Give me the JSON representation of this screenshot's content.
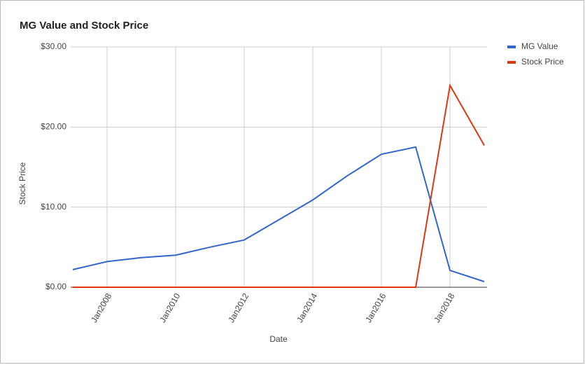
{
  "chart_data": {
    "type": "line",
    "title": "MG Value and Stock Price",
    "x_label": "Date",
    "y_label": "Stock Price",
    "x": [
      2007,
      2008,
      2009,
      2010,
      2011,
      2012,
      2013,
      2014,
      2015,
      2016,
      2017,
      2018,
      2019
    ],
    "series": [
      {
        "name": "MG Value",
        "color": "#3366cc",
        "values": [
          2.2,
          3.2,
          3.7,
          4.0,
          5.0,
          5.9,
          8.4,
          10.9,
          13.9,
          16.6,
          17.5,
          2.1,
          0.7
        ]
      },
      {
        "name": "Stock Price",
        "color": "#dc3912",
        "values": [
          0,
          0,
          0,
          0,
          0,
          0,
          0,
          0,
          0,
          0,
          0,
          25.2,
          17.7
        ]
      }
    ],
    "xlim": [
      2006.94,
      2019.08
    ],
    "xticks": [
      {
        "value": 2008,
        "label": "Jan2008"
      },
      {
        "value": 2010,
        "label": "Jan2010"
      },
      {
        "value": 2012,
        "label": "Jan2012"
      },
      {
        "value": 2014,
        "label": "Jan2014"
      },
      {
        "value": 2016,
        "label": "Jan2016"
      },
      {
        "value": 2018,
        "label": "Jan2018"
      }
    ],
    "ylim": [
      0,
      30
    ],
    "yticks": [
      {
        "value": 0,
        "label": "$0.00"
      },
      {
        "value": 10,
        "label": "$10.00"
      },
      {
        "value": 20,
        "label": "$20.00"
      },
      {
        "value": 30,
        "label": "$30.00"
      }
    ],
    "grid": true,
    "legend": "right"
  }
}
